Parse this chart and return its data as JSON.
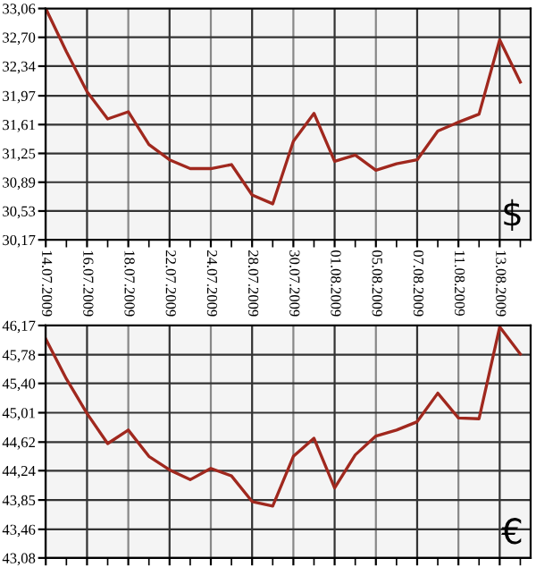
{
  "chart_data": [
    {
      "type": "line",
      "categories": [
        "14.07.2009",
        null,
        "16.07.2009",
        null,
        "18.07.2009",
        null,
        "22.07.2009",
        null,
        "24.07.2009",
        null,
        "28.07.2009",
        null,
        "30.07.2009",
        null,
        "01.08.2009",
        null,
        "05.08.2009",
        null,
        "07.08.2009",
        null,
        "11.08.2009",
        null,
        "13.08.2009",
        null
      ],
      "series": [
        {
          "color": "#a0281e",
          "values": [
            33.06,
            32.52,
            32.02,
            31.68,
            31.77,
            31.36,
            31.17,
            31.06,
            31.06,
            31.11,
            30.73,
            30.62,
            31.4,
            31.75,
            31.15,
            31.23,
            31.04,
            31.12,
            31.17,
            31.53,
            31.64,
            31.74,
            32.67,
            32.14
          ]
        }
      ],
      "ylim": [
        30.17,
        33.06
      ],
      "yticks": [
        {
          "value": 30.17,
          "label": "30,17"
        },
        {
          "value": 30.53,
          "label": "30,53"
        },
        {
          "value": 30.89,
          "label": "30,89"
        },
        {
          "value": 31.25,
          "label": "31,25"
        },
        {
          "value": 31.61,
          "label": "31,61"
        },
        {
          "value": 31.97,
          "label": "31,97"
        },
        {
          "value": 32.34,
          "label": "32,34"
        },
        {
          "value": 32.7,
          "label": "32,70"
        },
        {
          "value": 33.06,
          "label": "33,06"
        }
      ],
      "grid": true,
      "annotations": [
        "$"
      ]
    },
    {
      "type": "line",
      "categories": [
        "14.07.2009",
        null,
        "16.07.2009",
        null,
        "18.07.2009",
        null,
        "22.07.2009",
        null,
        "24.07.2009",
        null,
        "28.07.2009",
        null,
        "30.07.2009",
        null,
        "01.08.2009",
        null,
        "05.08.2009",
        null,
        "07.08.2009",
        null,
        "11.08.2009",
        null,
        "13.08.2009",
        null
      ],
      "series": [
        {
          "color": "#a0281e",
          "values": [
            45.99,
            45.46,
            45.0,
            44.6,
            44.78,
            44.43,
            44.25,
            44.12,
            44.27,
            44.17,
            43.83,
            43.77,
            44.43,
            44.67,
            44.01,
            44.45,
            44.7,
            44.78,
            44.89,
            45.27,
            44.94,
            44.93,
            46.15,
            45.79
          ]
        }
      ],
      "ylim": [
        43.08,
        46.17
      ],
      "yticks": [
        {
          "value": 43.08,
          "label": "43,08"
        },
        {
          "value": 43.46,
          "label": "43,46"
        },
        {
          "value": 43.85,
          "label": "43,85"
        },
        {
          "value": 44.24,
          "label": "44,24"
        },
        {
          "value": 44.62,
          "label": "44,62"
        },
        {
          "value": 45.01,
          "label": "45,01"
        },
        {
          "value": 45.4,
          "label": "45,40"
        },
        {
          "value": 45.78,
          "label": "45,78"
        },
        {
          "value": 46.17,
          "label": "46,17"
        }
      ],
      "grid": true,
      "tick_labels": "y",
      "annotations": [
        "€"
      ]
    }
  ]
}
